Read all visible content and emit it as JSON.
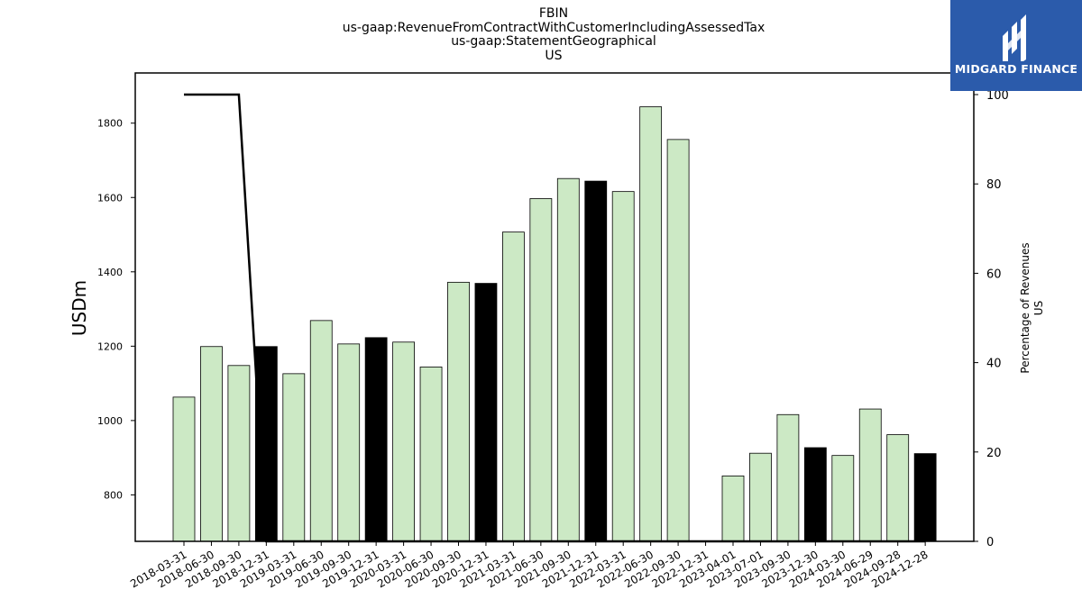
{
  "title_lines": [
    "FBIN",
    "us-gaap:RevenueFromContractWithCustomerIncludingAssessedTax",
    "us-gaap:StatementGeographical",
    "US"
  ],
  "logo": {
    "text": "MIDGARD FINANCE",
    "background": "#2b5bab",
    "icon": "midgard-logo-icon"
  },
  "colors": {
    "bar_default": "#cce9c5",
    "bar_highlight": "#000000",
    "line": "#000000"
  },
  "chart_data": {
    "type": "bar",
    "categories": [
      "2018-03-31",
      "2018-06-30",
      "2018-09-30",
      "2018-12-31",
      "2019-03-31",
      "2019-06-30",
      "2019-09-30",
      "2019-12-31",
      "2020-03-31",
      "2020-06-30",
      "2020-09-30",
      "2020-12-31",
      "2021-03-31",
      "2021-06-30",
      "2021-09-30",
      "2021-12-31",
      "2022-03-31",
      "2022-06-30",
      "2022-09-30",
      "2022-12-31",
      "2023-04-01",
      "2023-07-01",
      "2023-09-30",
      "2023-12-30",
      "2024-03-30",
      "2024-06-29",
      "2024-09-28",
      "2024-12-28"
    ],
    "values": [
      1063,
      1199,
      1148,
      1199,
      1126,
      1269,
      1206,
      1223,
      1211,
      1144,
      1372,
      1369,
      1507,
      1597,
      1651,
      1644,
      1616,
      1844,
      1756,
      null,
      851,
      912,
      1016,
      927,
      906,
      1031,
      962,
      911
    ],
    "highlighted": [
      false,
      false,
      false,
      true,
      false,
      false,
      false,
      true,
      false,
      false,
      false,
      true,
      false,
      false,
      false,
      true,
      false,
      false,
      false,
      false,
      false,
      false,
      false,
      true,
      false,
      false,
      false,
      true
    ],
    "ylabel": "USDm",
    "ylim": [
      675,
      1935
    ],
    "yticks": [
      800,
      1000,
      1200,
      1400,
      1600,
      1800
    ],
    "secondary": {
      "type": "line",
      "ylabel_lines": [
        "Percentage of Revenues",
        "US"
      ],
      "ylim": [
        0,
        100
      ],
      "yticks": [
        0,
        20,
        40,
        60,
        80,
        100
      ],
      "values": [
        100,
        100,
        100,
        0,
        0,
        0,
        0,
        0,
        0,
        0,
        0,
        0,
        0,
        0,
        0,
        0,
        0,
        0,
        0,
        0,
        0,
        0,
        0,
        0,
        0,
        0,
        0,
        0
      ]
    },
    "grid": false,
    "legend": "none"
  }
}
